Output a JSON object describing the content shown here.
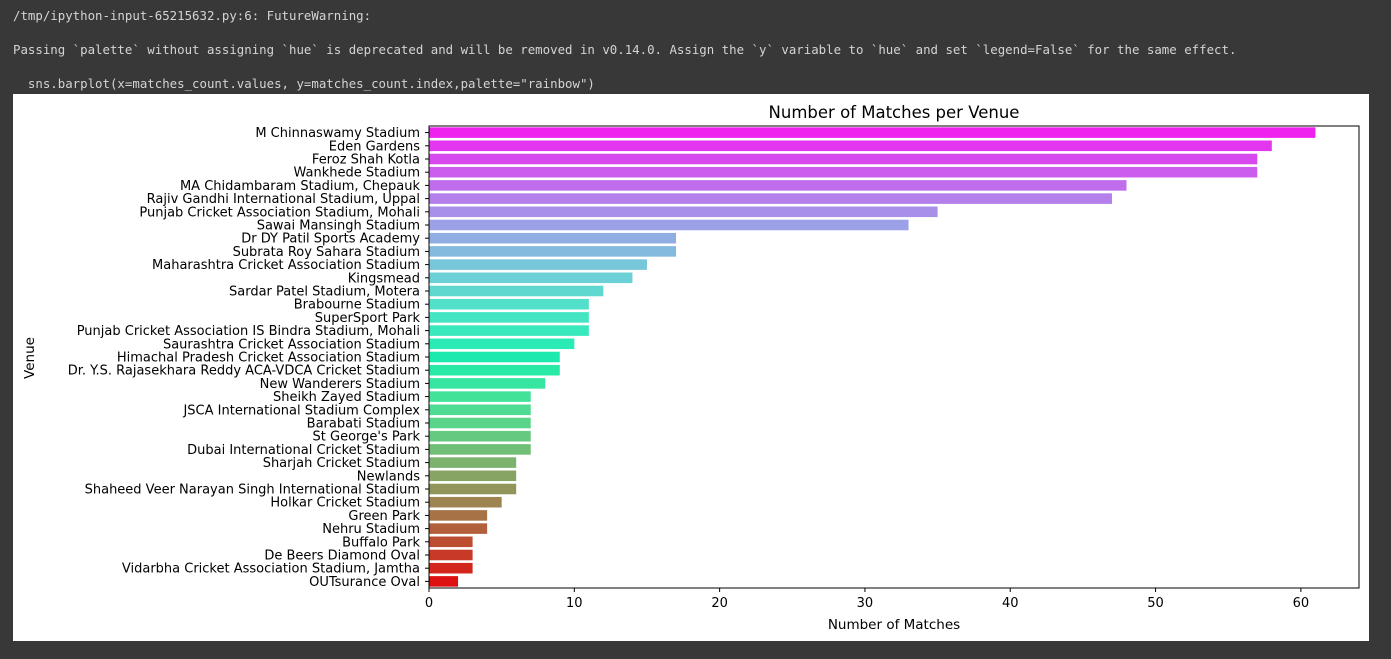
{
  "output": {
    "warning_line": "/tmp/ipython-input-65215632.py:6: FutureWarning:",
    "message_line": "Passing `palette` without assigning `hue` is deprecated and will be removed in v0.14.0. Assign the `y` variable to `hue` and set `legend=False` for the same effect.",
    "code_line": "  sns.barplot(x=matches_count.values, y=matches_count.index,palette=\"rainbow\")"
  },
  "chart_data": {
    "type": "bar",
    "orientation": "horizontal",
    "title": "Number of Matches per Venue",
    "xlabel": "Number of Matches",
    "ylabel": "Venue",
    "xlim": [
      0,
      64
    ],
    "xticks": [
      "0",
      "10",
      "20",
      "30",
      "40",
      "50",
      "60"
    ],
    "palette": "rainbow",
    "grid": false,
    "categories": [
      "M Chinnaswamy Stadium",
      "Eden Gardens",
      "Feroz Shah Kotla",
      "Wankhede Stadium",
      "MA Chidambaram Stadium, Chepauk",
      "Rajiv Gandhi International Stadium, Uppal",
      "Punjab Cricket Association Stadium, Mohali",
      "Sawai Mansingh Stadium",
      "Dr DY Patil Sports Academy",
      "Subrata Roy Sahara Stadium",
      "Maharashtra Cricket Association Stadium",
      "Kingsmead",
      "Sardar Patel Stadium, Motera",
      "Brabourne Stadium",
      "SuperSport Park",
      "Punjab Cricket Association IS Bindra Stadium, Mohali",
      "Saurashtra Cricket Association Stadium",
      "Himachal Pradesh Cricket Association Stadium",
      "Dr. Y.S. Rajasekhara Reddy ACA-VDCA Cricket Stadium",
      "New Wanderers Stadium",
      "Sheikh Zayed Stadium",
      "JSCA International Stadium Complex",
      "Barabati Stadium",
      "St George's Park",
      "Dubai International Cricket Stadium",
      "Sharjah Cricket Stadium",
      "Newlands",
      "Shaheed Veer Narayan Singh International Stadium",
      "Holkar Cricket Stadium",
      "Green Park",
      "Nehru Stadium",
      "Buffalo Park",
      "De Beers Diamond Oval",
      "Vidarbha Cricket Association Stadium, Jamtha",
      "OUTsurance Oval"
    ],
    "values": [
      61,
      58,
      57,
      57,
      48,
      47,
      35,
      33,
      17,
      17,
      15,
      14,
      12,
      11,
      11,
      11,
      10,
      9,
      9,
      8,
      7,
      7,
      7,
      7,
      7,
      6,
      6,
      6,
      5,
      4,
      4,
      3,
      3,
      3,
      2
    ]
  }
}
